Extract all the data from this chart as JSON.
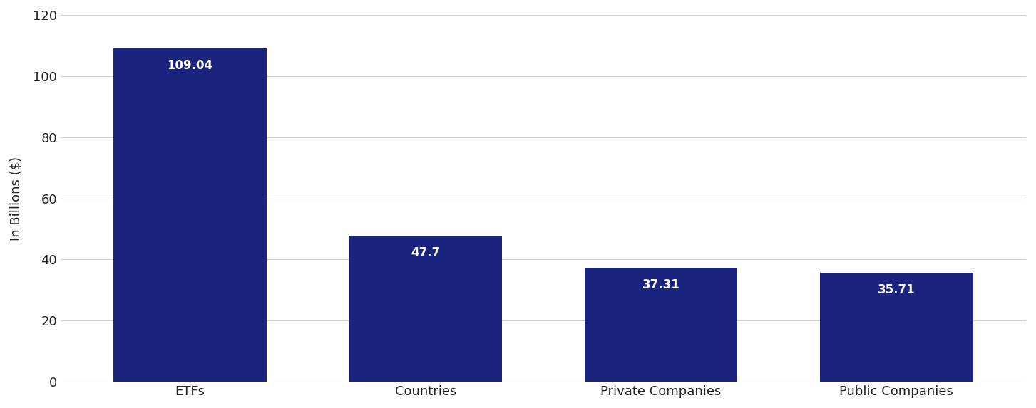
{
  "categories": [
    "ETFs",
    "Countries",
    "Private Companies",
    "Public Companies"
  ],
  "values": [
    109.04,
    47.7,
    37.31,
    35.71
  ],
  "bar_color": "#1a237e",
  "bar_labels": [
    "109.04",
    "47.7",
    "37.31",
    "35.71"
  ],
  "ylabel": "In Billions ($)",
  "ylim": [
    0,
    120
  ],
  "yticks": [
    0,
    20,
    40,
    60,
    80,
    100,
    120
  ],
  "label_fontsize": 12,
  "tick_fontsize": 13,
  "ylabel_fontsize": 13,
  "background_color": "#ffffff",
  "grid_color": "#d0d0d0",
  "text_color": "#ffffff",
  "bar_width": 0.65
}
